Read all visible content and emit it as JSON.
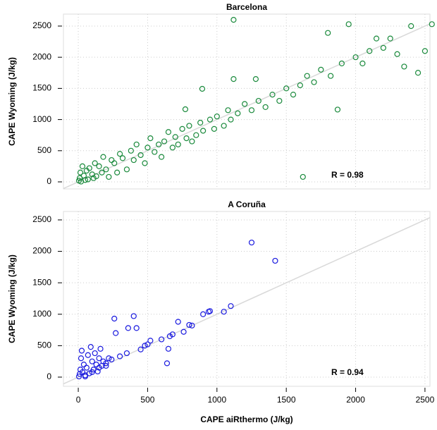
{
  "chart_data": [
    {
      "type": "scatter",
      "title": "Barcelona",
      "ylabel": "CAPE Wyoming (J/kg)",
      "annotation": "R = 0.98",
      "color": "#1a8a3c",
      "reference_line": true,
      "grid": true,
      "xlim": [
        -107,
        2536
      ],
      "ylim": [
        -113,
        2692
      ],
      "xticks": [
        0,
        500,
        1000,
        1500,
        2000,
        2500
      ],
      "yticks": [
        0,
        500,
        1000,
        1500,
        2000,
        2500
      ],
      "x": [
        5,
        10,
        20,
        30,
        15,
        40,
        50,
        60,
        70,
        80,
        100,
        110,
        120,
        130,
        150,
        170,
        180,
        200,
        220,
        240,
        260,
        280,
        300,
        320,
        350,
        380,
        400,
        420,
        450,
        480,
        500,
        520,
        550,
        580,
        600,
        620,
        650,
        680,
        700,
        720,
        750,
        780,
        800,
        820,
        850,
        880,
        900,
        950,
        980,
        1000,
        1050,
        1080,
        1100,
        1120,
        1150,
        1200,
        1250,
        1280,
        1300,
        1350,
        1400,
        1450,
        1500,
        1550,
        1600,
        1620,
        1650,
        1700,
        1750,
        1800,
        1820,
        1870,
        1900,
        1950,
        2000,
        2050,
        2100,
        2150,
        2200,
        2250,
        2300,
        2350,
        2400,
        2450,
        2500,
        2550,
        1120,
        894,
        772
      ],
      "values": [
        20,
        60,
        5,
        250,
        150,
        100,
        30,
        180,
        40,
        220,
        120,
        60,
        300,
        90,
        250,
        150,
        400,
        200,
        80,
        350,
        300,
        150,
        450,
        380,
        200,
        500,
        350,
        600,
        430,
        300,
        550,
        700,
        480,
        600,
        400,
        650,
        800,
        550,
        720,
        600,
        850,
        700,
        900,
        650,
        750,
        950,
        820,
        1000,
        850,
        1050,
        900,
        1150,
        1000,
        1650,
        1100,
        1250,
        1150,
        1650,
        1300,
        1200,
        1400,
        1300,
        1500,
        1400,
        1550,
        80,
        1700,
        1600,
        1800,
        2390,
        1700,
        1160,
        1900,
        2530,
        2000,
        1900,
        2100,
        2300,
        2150,
        2300,
        2050,
        1850,
        2500,
        1750,
        2100,
        2530,
        2600,
        1493,
        1165
      ]
    },
    {
      "type": "scatter",
      "title": "A Coruña",
      "ylabel": "CAPE Wyoming (J/kg)",
      "xlabel": "CAPE aiRthermo  (J/kg)",
      "annotation": "R = 0.94",
      "color": "#1a1adf",
      "reference_line": true,
      "grid": true,
      "xlim": [
        -107,
        2536
      ],
      "ylim": [
        -146,
        2634
      ],
      "xticks": [
        0,
        500,
        1000,
        1500,
        2000,
        2500
      ],
      "yticks": [
        0,
        500,
        1000,
        1500,
        2000,
        2500
      ],
      "x": [
        5,
        10,
        15,
        20,
        25,
        30,
        40,
        50,
        60,
        70,
        80,
        90,
        100,
        110,
        120,
        130,
        140,
        150,
        160,
        170,
        180,
        200,
        220,
        240,
        260,
        270,
        300,
        350,
        360,
        400,
        420,
        450,
        480,
        500,
        520,
        600,
        640,
        650,
        660,
        680,
        720,
        760,
        800,
        820,
        900,
        940,
        950,
        1050,
        1100,
        1250,
        1420,
        50,
        100,
        150,
        200
      ],
      "values": [
        10,
        50,
        120,
        300,
        420,
        80,
        200,
        30,
        150,
        350,
        60,
        480,
        250,
        120,
        380,
        200,
        90,
        300,
        450,
        180,
        250,
        220,
        300,
        280,
        930,
        700,
        330,
        380,
        780,
        970,
        780,
        440,
        500,
        520,
        580,
        600,
        220,
        450,
        650,
        680,
        880,
        720,
        830,
        820,
        1000,
        1040,
        1050,
        1040,
        1130,
        2140,
        1850,
        10,
        80,
        150,
        180
      ]
    }
  ]
}
